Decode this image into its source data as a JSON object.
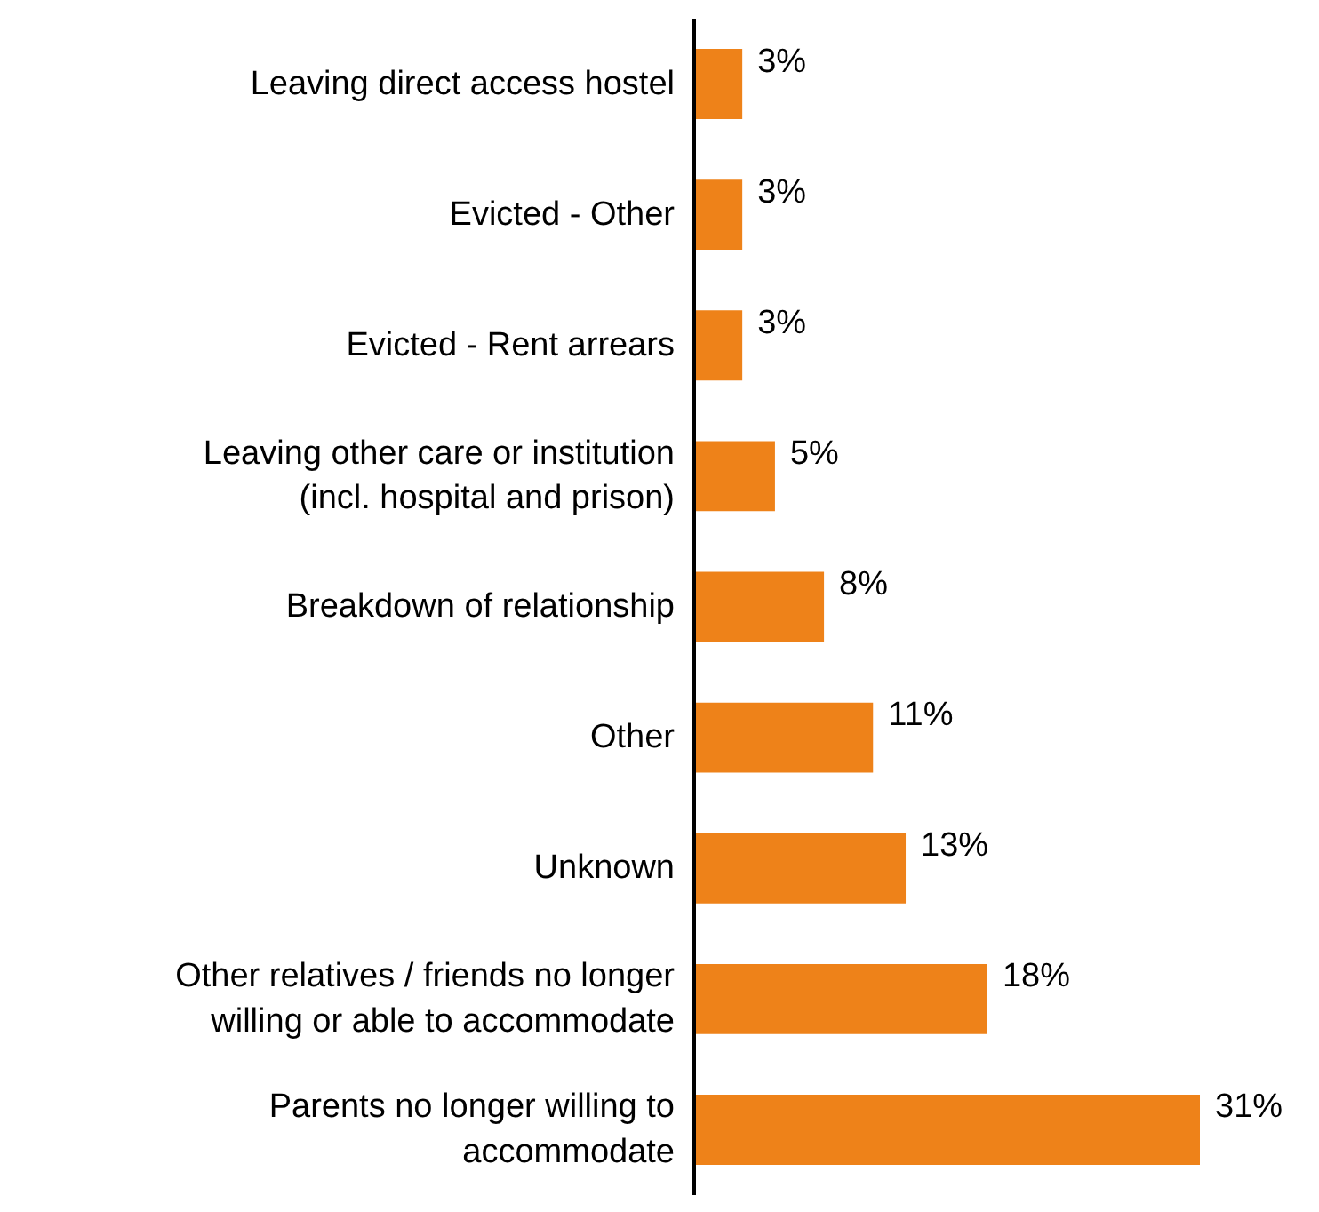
{
  "chart_data": {
    "type": "bar",
    "orientation": "horizontal",
    "categories": [
      "Leaving direct access hostel",
      "Evicted - Other",
      "Evicted - Rent arrears",
      "Leaving other care or institution\n(incl. hospital and prison)",
      "Breakdown of relationship",
      "Other",
      "Unknown",
      "Other relatives / friends no longer\nwilling or able to accommodate",
      "Parents no longer willing to\naccommodate"
    ],
    "values": [
      3,
      3,
      3,
      5,
      8,
      11,
      13,
      18,
      31
    ],
    "value_labels": [
      "3%",
      "3%",
      "3%",
      "5%",
      "8%",
      "11%",
      "13%",
      "18%",
      "31%"
    ],
    "color": "#ee8219"
  }
}
